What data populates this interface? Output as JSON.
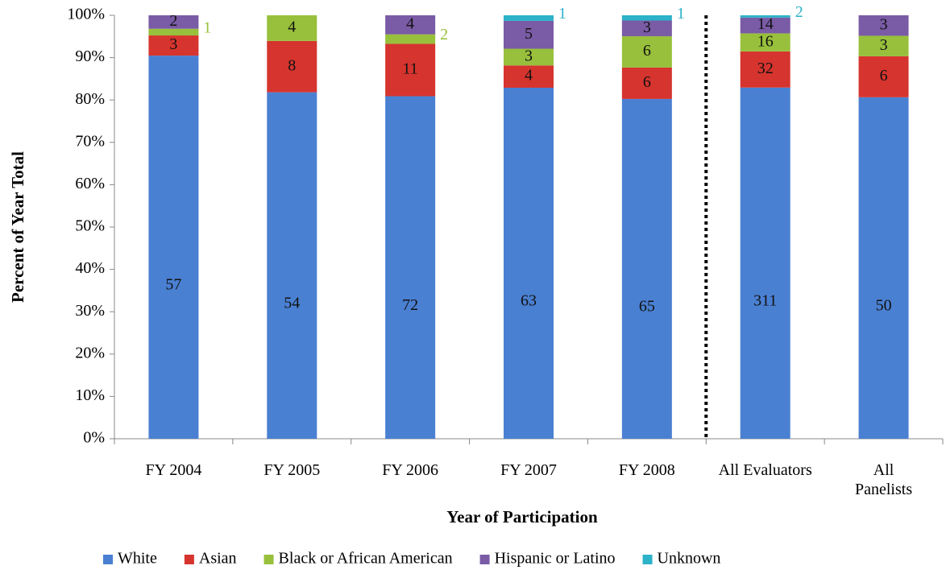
{
  "chart_data": {
    "type": "percent_stacked_bar",
    "y_axis_label": "Percent of Year Total",
    "x_axis_label": "Year of Participation",
    "categories": [
      "FY 2004",
      "FY 2005",
      "FY 2006",
      "FY 2007",
      "FY 2008",
      "All Evaluators",
      "All Panelists"
    ],
    "series": [
      {
        "name": "White",
        "color": "#4a80d2",
        "values": [
          57,
          54,
          72,
          63,
          65,
          311,
          50
        ]
      },
      {
        "name": "Asian",
        "color": "#d6342e",
        "values": [
          3,
          8,
          11,
          4,
          6,
          32,
          6
        ]
      },
      {
        "name": "Black or African American",
        "color": "#98c03c",
        "values": [
          1,
          4,
          2,
          3,
          6,
          16,
          3
        ]
      },
      {
        "name": "Hispanic or Latino",
        "color": "#7a5ba6",
        "values": [
          2,
          null,
          4,
          5,
          3,
          14,
          3
        ]
      },
      {
        "name": "Unknown",
        "color": "#2cb2c9",
        "values": [
          null,
          null,
          null,
          1,
          1,
          2,
          null
        ]
      }
    ],
    "ylim": [
      0,
      100
    ],
    "yticks": [
      {
        "value": 0,
        "label": "0%"
      },
      {
        "value": 10,
        "label": "10%"
      },
      {
        "value": 20,
        "label": "20%"
      },
      {
        "value": 30,
        "label": "30%"
      },
      {
        "value": 40,
        "label": "40%"
      },
      {
        "value": 50,
        "label": "50%"
      },
      {
        "value": 60,
        "label": "60%"
      },
      {
        "value": 70,
        "label": "70%"
      },
      {
        "value": 80,
        "label": "80%"
      },
      {
        "value": 90,
        "label": "90%"
      },
      {
        "value": 100,
        "label": "100%"
      }
    ],
    "grid": false,
    "legend": "bottom"
  }
}
